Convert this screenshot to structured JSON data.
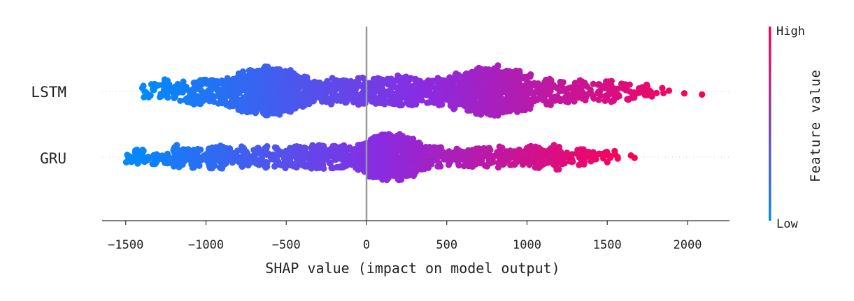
{
  "chart_data": {
    "type": "scatter",
    "subtype": "shap-beeswarm",
    "title": "",
    "xlabel": "SHAP value (impact on model output)",
    "ylabel": "",
    "xlim": [
      -1650,
      2270
    ],
    "x_ticks": [
      -1500,
      -1000,
      -500,
      0,
      500,
      1000,
      1500,
      2000
    ],
    "x_tick_labels": [
      "−1500",
      "−1000",
      "−500",
      "0",
      "500",
      "1000",
      "1500",
      "2000"
    ],
    "grid": false,
    "zero_line": true,
    "series": [
      {
        "name": "LSTM",
        "range": [
          -1400,
          2100
        ],
        "density_peaks": [
          {
            "x": -600,
            "spread": 140,
            "weight": 1.0
          },
          {
            "x": 780,
            "spread": 150,
            "weight": 1.1
          },
          {
            "x": 150,
            "spread": 300,
            "weight": 0.7
          },
          {
            "x": -1050,
            "spread": 220,
            "weight": 0.35
          },
          {
            "x": 1200,
            "spread": 300,
            "weight": 0.35
          }
        ],
        "outliers": [
          1750,
          1850,
          1980,
          2090,
          -1390,
          -1340,
          -350,
          -220,
          1520,
          1560,
          1600
        ]
      },
      {
        "name": "GRU",
        "range": [
          -1500,
          1680
        ],
        "density_peaks": [
          {
            "x": 140,
            "spread": 110,
            "weight": 1.0
          },
          {
            "x": -1000,
            "spread": 350,
            "weight": 0.45
          },
          {
            "x": -300,
            "spread": 250,
            "weight": 0.4
          },
          {
            "x": 650,
            "spread": 330,
            "weight": 0.45
          },
          {
            "x": 1150,
            "spread": 200,
            "weight": 0.2
          }
        ],
        "outliers": [
          -1490,
          1430,
          1470,
          1500,
          1670
        ]
      }
    ],
    "colorbar": {
      "label": "Feature value",
      "high_label": "High",
      "low_label": "Low",
      "low_color": "#008bfb",
      "high_color": "#ff0052"
    }
  }
}
